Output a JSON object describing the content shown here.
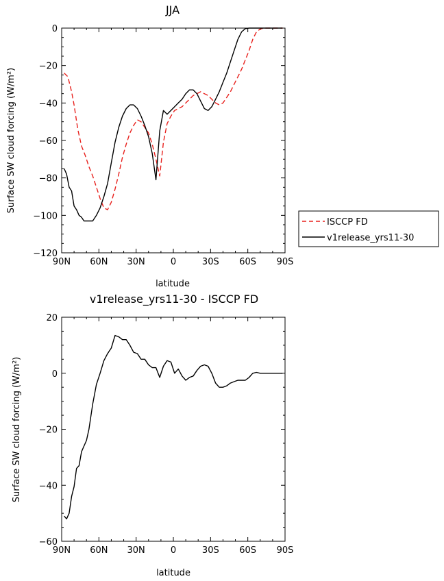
{
  "chart_data": [
    {
      "type": "line",
      "title": "JJA",
      "xlabel": "latitude",
      "ylabel": "Surface SW cloud forcing (W/m²)",
      "xlim": [
        90,
        -90
      ],
      "ylim": [
        -120,
        0
      ],
      "xticks": [
        {
          "value": 90,
          "label": "90N"
        },
        {
          "value": 60,
          "label": "60N"
        },
        {
          "value": 30,
          "label": "30N"
        },
        {
          "value": 0,
          "label": "0"
        },
        {
          "value": -30,
          "label": "30S"
        },
        {
          "value": -60,
          "label": "60S"
        },
        {
          "value": -90,
          "label": "90S"
        }
      ],
      "yticks": [
        0,
        -20,
        -40,
        -60,
        -80,
        -100,
        -120
      ],
      "grid": false,
      "legend": "right",
      "series": [
        {
          "name": "ISCCP FD",
          "color": "#e8211d",
          "dash": "dashed",
          "x": [
            88,
            85,
            82,
            80,
            77,
            74,
            71,
            68,
            65,
            62,
            59,
            56,
            53,
            50,
            47,
            44,
            41,
            38,
            35,
            32,
            29,
            26,
            23,
            20,
            17,
            14,
            11,
            8,
            5,
            2,
            -1,
            -4,
            -7,
            -10,
            -13,
            -16,
            -19,
            -22,
            -25,
            -28,
            -31,
            -34,
            -37,
            -40,
            -43,
            -46,
            -49,
            -52,
            -55,
            -58,
            -61,
            -64,
            -67,
            -70,
            -73,
            -76,
            -80,
            -85,
            -88
          ],
          "y": [
            -24,
            -26,
            -34,
            -41,
            -54,
            -63,
            -68,
            -74,
            -79,
            -85,
            -91,
            -96,
            -97,
            -93,
            -86,
            -78,
            -69,
            -62,
            -56,
            -52,
            -49,
            -50,
            -53,
            -56,
            -62,
            -70,
            -79,
            -61,
            -51,
            -47,
            -44,
            -43,
            -42,
            -40,
            -38,
            -36,
            -35,
            -34,
            -35,
            -36,
            -38,
            -40,
            -41,
            -40,
            -37,
            -34,
            -30,
            -26,
            -22,
            -17,
            -12,
            -6,
            -2,
            -0.5,
            0,
            0,
            0,
            0,
            0
          ]
        },
        {
          "name": "v1release_yrs11-30",
          "color": "#000000",
          "dash": "solid",
          "x": [
            88,
            86,
            84,
            82,
            80,
            78,
            76,
            74,
            72,
            70,
            68,
            65,
            62,
            59,
            56,
            53,
            50,
            47,
            44,
            41,
            38,
            35,
            32,
            29,
            26,
            23,
            20,
            17,
            14,
            11,
            8,
            5,
            2,
            -1,
            -4,
            -7,
            -10,
            -13,
            -16,
            -19,
            -22,
            -25,
            -28,
            -31,
            -34,
            -37,
            -40,
            -43,
            -46,
            -49,
            -52,
            -55,
            -58,
            -61,
            -64,
            -67,
            -70,
            -73,
            -76,
            -80,
            -85,
            -88
          ],
          "y": [
            -75,
            -78,
            -85,
            -87,
            -95,
            -97,
            -100,
            -101,
            -103,
            -103,
            -103,
            -103,
            -100,
            -96,
            -90,
            -83,
            -72,
            -61,
            -53,
            -47,
            -43,
            -41,
            -41,
            -43,
            -47,
            -52,
            -58,
            -67,
            -81,
            -55,
            -44,
            -46,
            -44,
            -42,
            -40,
            -38,
            -35,
            -33,
            -33,
            -35,
            -39,
            -43,
            -44,
            -42,
            -38,
            -34,
            -29,
            -24,
            -18,
            -12,
            -6,
            -2,
            -0.3,
            0,
            0,
            0,
            0,
            0,
            0,
            0,
            0,
            0
          ]
        }
      ]
    },
    {
      "type": "line",
      "title": "v1release_yrs11-30 - ISCCP FD",
      "xlabel": "latitude",
      "ylabel": "Surface SW cloud forcing (W/m²)",
      "xlim": [
        90,
        -90
      ],
      "ylim": [
        -60,
        20
      ],
      "xticks": [
        {
          "value": 90,
          "label": "90N"
        },
        {
          "value": 60,
          "label": "60N"
        },
        {
          "value": 30,
          "label": "30N"
        },
        {
          "value": 0,
          "label": "0"
        },
        {
          "value": -30,
          "label": "30S"
        },
        {
          "value": -60,
          "label": "60S"
        },
        {
          "value": -90,
          "label": "90S"
        }
      ],
      "yticks": [
        20,
        0,
        -20,
        -40,
        -60
      ],
      "grid": false,
      "series": [
        {
          "color": "#000000",
          "dash": "solid",
          "x": [
            88,
            86,
            84,
            82,
            80,
            78,
            76,
            74,
            72,
            70,
            68,
            65,
            62,
            59,
            56,
            53,
            50,
            47,
            44,
            41,
            38,
            35,
            32,
            29,
            26,
            23,
            20,
            17,
            14,
            11,
            8,
            5,
            2,
            -1,
            -4,
            -7,
            -10,
            -13,
            -16,
            -19,
            -22,
            -25,
            -28,
            -31,
            -34,
            -37,
            -40,
            -43,
            -46,
            -49,
            -52,
            -55,
            -58,
            -61,
            -64,
            -67,
            -70,
            -73,
            -76,
            -80,
            -85,
            -88
          ],
          "y": [
            -51,
            -52,
            -50,
            -44,
            -40.5,
            -34,
            -33,
            -28,
            -26,
            -24,
            -20,
            -11,
            -4,
            0,
            4.5,
            7,
            9,
            13.5,
            13,
            12,
            12,
            10,
            7.5,
            7,
            5,
            5,
            3,
            2,
            2,
            -1.5,
            2.5,
            4.5,
            4,
            0,
            1.5,
            -1,
            -2.5,
            -1.5,
            -1,
            1,
            2.5,
            3,
            2.5,
            0,
            -3.5,
            -5,
            -5,
            -4.5,
            -3.5,
            -3,
            -2.5,
            -2.5,
            -2.5,
            -1.5,
            0,
            0.3,
            0,
            0,
            0,
            0,
            0,
            0
          ]
        }
      ]
    }
  ]
}
